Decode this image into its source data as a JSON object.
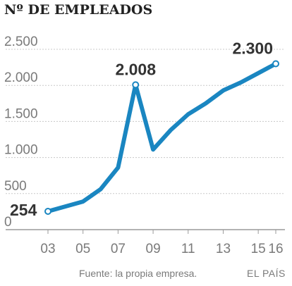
{
  "chart_data": {
    "type": "line",
    "title": "Nº DE EMPLEADOS",
    "x": [
      2003,
      2005,
      2006,
      2007,
      2008,
      2009,
      2010,
      2011,
      2012,
      2013,
      2014,
      2015,
      2016
    ],
    "series": [
      {
        "values": [
          254,
          390,
          560,
          860,
          2008,
          1110,
          1380,
          1600,
          1750,
          1930,
          2040,
          2170,
          2300
        ]
      }
    ],
    "x_tick_labels": [
      "03",
      "05",
      "07",
      "09",
      "11",
      "13",
      "15",
      "16"
    ],
    "x_tick_values": [
      2003,
      2005,
      2007,
      2009,
      2011,
      2013,
      2015,
      2016
    ],
    "y_tick_labels": [
      "0",
      "500",
      "1.000",
      "1.500",
      "2.000",
      "2.500"
    ],
    "y_tick_values": [
      0,
      500,
      1000,
      1500,
      2000,
      2500
    ],
    "ylim": [
      0,
      2500
    ],
    "xlim": [
      2003,
      2016
    ],
    "data_labels": [
      {
        "x": 2003,
        "y": 254,
        "text": "254"
      },
      {
        "x": 2008,
        "y": 2008,
        "text": "2.008"
      },
      {
        "x": 2016,
        "y": 2300,
        "text": "2.300"
      }
    ],
    "grid": true,
    "line_color": "#1a86c1"
  },
  "source_text": "Fuente: la propia empresa.",
  "brand_text": "EL PAÍS"
}
